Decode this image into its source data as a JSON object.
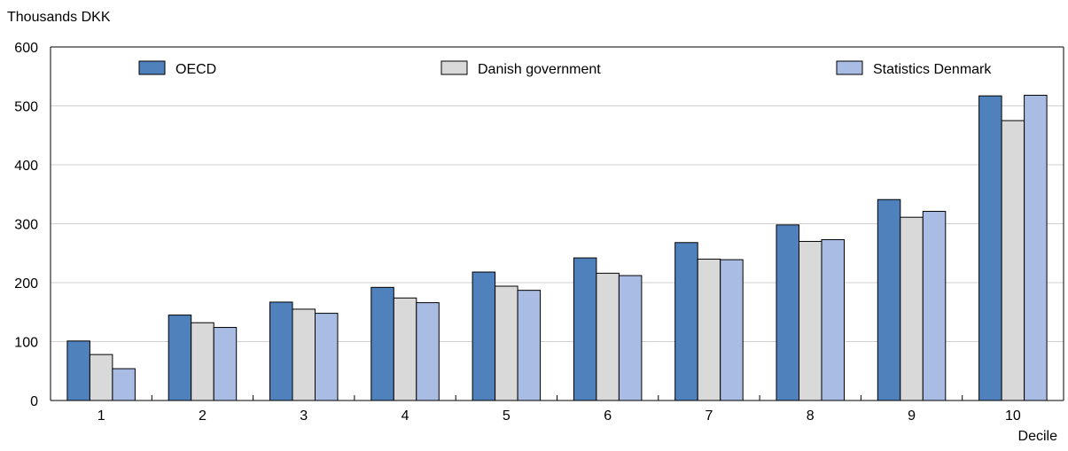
{
  "chart_data": {
    "type": "bar",
    "ylabel": "Thousands DKK",
    "xlabel": "Decile",
    "categories": [
      "1",
      "2",
      "3",
      "4",
      "5",
      "6",
      "7",
      "8",
      "9",
      "10"
    ],
    "ylim": [
      0,
      600
    ],
    "yticks": [
      0,
      100,
      200,
      300,
      400,
      500,
      600
    ],
    "grid": true,
    "legend_position": "top",
    "series": [
      {
        "name": "OECD",
        "color": "#4f81bd",
        "values": [
          101,
          145,
          167,
          192,
          218,
          242,
          268,
          298,
          341,
          517
        ]
      },
      {
        "name": "Danish government",
        "color": "#d9d9d9",
        "values": [
          78,
          132,
          155,
          174,
          194,
          216,
          240,
          270,
          311,
          475
        ]
      },
      {
        "name": "Statistics Denmark",
        "color": "#a9bce4",
        "values": [
          54,
          124,
          148,
          166,
          187,
          212,
          239,
          273,
          321,
          518
        ]
      }
    ]
  }
}
